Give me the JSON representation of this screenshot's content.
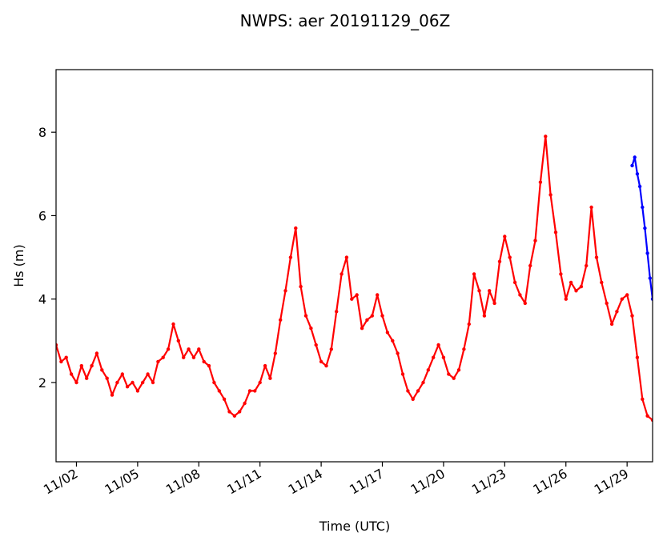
{
  "chart_data": {
    "type": "line",
    "title": "NWPS: aer 20191129_06Z",
    "xlabel": "Time (UTC)",
    "ylabel": "Hs (m)",
    "x_type": "date",
    "xlim": [
      "2019-11-01T00:00",
      "2019-11-30T06:00"
    ],
    "ylim": [
      0.1,
      9.5
    ],
    "x_ticks": [
      {
        "date": "2019-11-02T00:00",
        "label": "11/02"
      },
      {
        "date": "2019-11-05T00:00",
        "label": "11/05"
      },
      {
        "date": "2019-11-08T00:00",
        "label": "11/08"
      },
      {
        "date": "2019-11-11T00:00",
        "label": "11/11"
      },
      {
        "date": "2019-11-14T00:00",
        "label": "11/14"
      },
      {
        "date": "2019-11-17T00:00",
        "label": "11/17"
      },
      {
        "date": "2019-11-20T00:00",
        "label": "11/20"
      },
      {
        "date": "2019-11-23T00:00",
        "label": "11/23"
      },
      {
        "date": "2019-11-26T00:00",
        "label": "11/26"
      },
      {
        "date": "2019-11-29T00:00",
        "label": "11/29"
      }
    ],
    "y_ticks": [
      2,
      4,
      6,
      8
    ],
    "grid": false,
    "legend": "none",
    "series": [
      {
        "color": "#ff0000",
        "points": [
          [
            "2019-11-01T00:00",
            2.9
          ],
          [
            "2019-11-01T06:00",
            2.5
          ],
          [
            "2019-11-01T12:00",
            2.6
          ],
          [
            "2019-11-01T18:00",
            2.2
          ],
          [
            "2019-11-02T00:00",
            2.0
          ],
          [
            "2019-11-02T06:00",
            2.4
          ],
          [
            "2019-11-02T12:00",
            2.1
          ],
          [
            "2019-11-02T18:00",
            2.4
          ],
          [
            "2019-11-03T00:00",
            2.7
          ],
          [
            "2019-11-03T06:00",
            2.3
          ],
          [
            "2019-11-03T12:00",
            2.1
          ],
          [
            "2019-11-03T18:00",
            1.7
          ],
          [
            "2019-11-04T00:00",
            2.0
          ],
          [
            "2019-11-04T06:00",
            2.2
          ],
          [
            "2019-11-04T12:00",
            1.9
          ],
          [
            "2019-11-04T18:00",
            2.0
          ],
          [
            "2019-11-05T00:00",
            1.8
          ],
          [
            "2019-11-05T06:00",
            2.0
          ],
          [
            "2019-11-05T12:00",
            2.2
          ],
          [
            "2019-11-05T18:00",
            2.0
          ],
          [
            "2019-11-06T00:00",
            2.5
          ],
          [
            "2019-11-06T06:00",
            2.6
          ],
          [
            "2019-11-06T12:00",
            2.8
          ],
          [
            "2019-11-06T18:00",
            3.4
          ],
          [
            "2019-11-07T00:00",
            3.0
          ],
          [
            "2019-11-07T06:00",
            2.6
          ],
          [
            "2019-11-07T12:00",
            2.8
          ],
          [
            "2019-11-07T18:00",
            2.6
          ],
          [
            "2019-11-08T00:00",
            2.8
          ],
          [
            "2019-11-08T06:00",
            2.5
          ],
          [
            "2019-11-08T12:00",
            2.4
          ],
          [
            "2019-11-08T18:00",
            2.0
          ],
          [
            "2019-11-09T00:00",
            1.8
          ],
          [
            "2019-11-09T06:00",
            1.6
          ],
          [
            "2019-11-09T12:00",
            1.3
          ],
          [
            "2019-11-09T18:00",
            1.2
          ],
          [
            "2019-11-10T00:00",
            1.3
          ],
          [
            "2019-11-10T06:00",
            1.5
          ],
          [
            "2019-11-10T12:00",
            1.8
          ],
          [
            "2019-11-10T18:00",
            1.8
          ],
          [
            "2019-11-11T00:00",
            2.0
          ],
          [
            "2019-11-11T06:00",
            2.4
          ],
          [
            "2019-11-11T12:00",
            2.1
          ],
          [
            "2019-11-11T18:00",
            2.7
          ],
          [
            "2019-11-12T00:00",
            3.5
          ],
          [
            "2019-11-12T06:00",
            4.2
          ],
          [
            "2019-11-12T12:00",
            5.0
          ],
          [
            "2019-11-12T18:00",
            5.7
          ],
          [
            "2019-11-13T00:00",
            4.3
          ],
          [
            "2019-11-13T06:00",
            3.6
          ],
          [
            "2019-11-13T12:00",
            3.3
          ],
          [
            "2019-11-13T18:00",
            2.9
          ],
          [
            "2019-11-14T00:00",
            2.5
          ],
          [
            "2019-11-14T06:00",
            2.4
          ],
          [
            "2019-11-14T12:00",
            2.8
          ],
          [
            "2019-11-14T18:00",
            3.7
          ],
          [
            "2019-11-15T00:00",
            4.6
          ],
          [
            "2019-11-15T06:00",
            5.0
          ],
          [
            "2019-11-15T12:00",
            4.0
          ],
          [
            "2019-11-15T18:00",
            4.1
          ],
          [
            "2019-11-16T00:00",
            3.3
          ],
          [
            "2019-11-16T06:00",
            3.5
          ],
          [
            "2019-11-16T12:00",
            3.6
          ],
          [
            "2019-11-16T18:00",
            4.1
          ],
          [
            "2019-11-17T00:00",
            3.6
          ],
          [
            "2019-11-17T06:00",
            3.2
          ],
          [
            "2019-11-17T12:00",
            3.0
          ],
          [
            "2019-11-17T18:00",
            2.7
          ],
          [
            "2019-11-18T00:00",
            2.2
          ],
          [
            "2019-11-18T06:00",
            1.8
          ],
          [
            "2019-11-18T12:00",
            1.6
          ],
          [
            "2019-11-18T18:00",
            1.8
          ],
          [
            "2019-11-19T00:00",
            2.0
          ],
          [
            "2019-11-19T06:00",
            2.3
          ],
          [
            "2019-11-19T12:00",
            2.6
          ],
          [
            "2019-11-19T18:00",
            2.9
          ],
          [
            "2019-11-20T00:00",
            2.6
          ],
          [
            "2019-11-20T06:00",
            2.2
          ],
          [
            "2019-11-20T12:00",
            2.1
          ],
          [
            "2019-11-20T18:00",
            2.3
          ],
          [
            "2019-11-21T00:00",
            2.8
          ],
          [
            "2019-11-21T06:00",
            3.4
          ],
          [
            "2019-11-21T12:00",
            4.6
          ],
          [
            "2019-11-21T18:00",
            4.2
          ],
          [
            "2019-11-22T00:00",
            3.6
          ],
          [
            "2019-11-22T06:00",
            4.2
          ],
          [
            "2019-11-22T12:00",
            3.9
          ],
          [
            "2019-11-22T18:00",
            4.9
          ],
          [
            "2019-11-23T00:00",
            5.5
          ],
          [
            "2019-11-23T06:00",
            5.0
          ],
          [
            "2019-11-23T12:00",
            4.4
          ],
          [
            "2019-11-23T18:00",
            4.1
          ],
          [
            "2019-11-24T00:00",
            3.9
          ],
          [
            "2019-11-24T06:00",
            4.8
          ],
          [
            "2019-11-24T12:00",
            5.4
          ],
          [
            "2019-11-24T18:00",
            6.8
          ],
          [
            "2019-11-25T00:00",
            7.9
          ],
          [
            "2019-11-25T06:00",
            6.5
          ],
          [
            "2019-11-25T12:00",
            5.6
          ],
          [
            "2019-11-25T18:00",
            4.6
          ],
          [
            "2019-11-26T00:00",
            4.0
          ],
          [
            "2019-11-26T06:00",
            4.4
          ],
          [
            "2019-11-26T12:00",
            4.2
          ],
          [
            "2019-11-26T18:00",
            4.3
          ],
          [
            "2019-11-27T00:00",
            4.8
          ],
          [
            "2019-11-27T06:00",
            6.2
          ],
          [
            "2019-11-27T12:00",
            5.0
          ],
          [
            "2019-11-27T18:00",
            4.4
          ],
          [
            "2019-11-28T00:00",
            3.9
          ],
          [
            "2019-11-28T06:00",
            3.4
          ],
          [
            "2019-11-28T12:00",
            3.7
          ],
          [
            "2019-11-28T18:00",
            4.0
          ],
          [
            "2019-11-29T00:00",
            4.1
          ],
          [
            "2019-11-29T06:00",
            3.6
          ],
          [
            "2019-11-29T12:00",
            2.6
          ],
          [
            "2019-11-29T18:00",
            1.6
          ],
          [
            "2019-11-30T00:00",
            1.2
          ],
          [
            "2019-11-30T06:00",
            1.1
          ]
        ]
      },
      {
        "color": "#0000ff",
        "points": [
          [
            "2019-11-29T06:00",
            7.2
          ],
          [
            "2019-11-29T09:00",
            7.4
          ],
          [
            "2019-11-29T12:00",
            7.0
          ],
          [
            "2019-11-29T15:00",
            6.7
          ],
          [
            "2019-11-29T18:00",
            6.2
          ],
          [
            "2019-11-29T21:00",
            5.7
          ],
          [
            "2019-11-30T00:00",
            5.1
          ],
          [
            "2019-11-30T03:00",
            4.5
          ],
          [
            "2019-11-30T06:00",
            4.0
          ]
        ]
      }
    ]
  }
}
